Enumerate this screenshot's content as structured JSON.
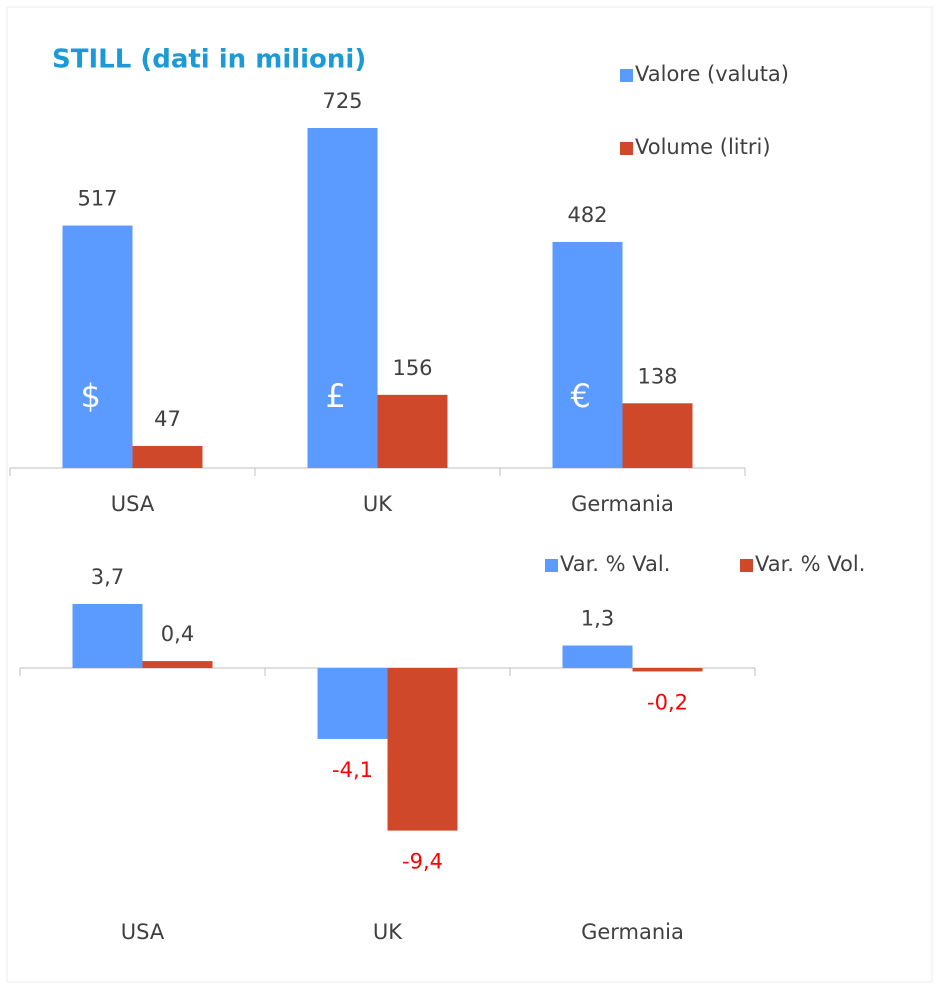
{
  "chart_data": [
    {
      "type": "bar",
      "title": "STILL (dati in milioni)",
      "categories": [
        "USA",
        "UK",
        "Germania"
      ],
      "series": [
        {
          "name": "Valore (valuta)",
          "color": "#5b9bff",
          "values": [
            517,
            725,
            482
          ]
        },
        {
          "name": "Volume (litri)",
          "color": "#d0482a",
          "values": [
            47,
            156,
            138
          ]
        }
      ],
      "annotations": [
        "$",
        "£",
        "€"
      ],
      "legend": "top-right",
      "legend_layout": "vertical"
    },
    {
      "type": "bar",
      "categories": [
        "USA",
        "UK",
        "Germania"
      ],
      "series": [
        {
          "name": "Var. % Val.",
          "color": "#5b9bff",
          "values": [
            3.7,
            -4.1,
            1.3
          ],
          "value_labels": [
            "3,7",
            "-4,1",
            "1,3"
          ]
        },
        {
          "name": "Var. % Vol.",
          "color": "#d0482a",
          "values": [
            0.4,
            -9.4,
            -0.2
          ],
          "value_labels": [
            "0,4",
            "-9,4",
            "-0,2"
          ]
        }
      ],
      "negative_label_color": "#ff0000",
      "legend": "top-right",
      "legend_layout": "horizontal"
    }
  ]
}
